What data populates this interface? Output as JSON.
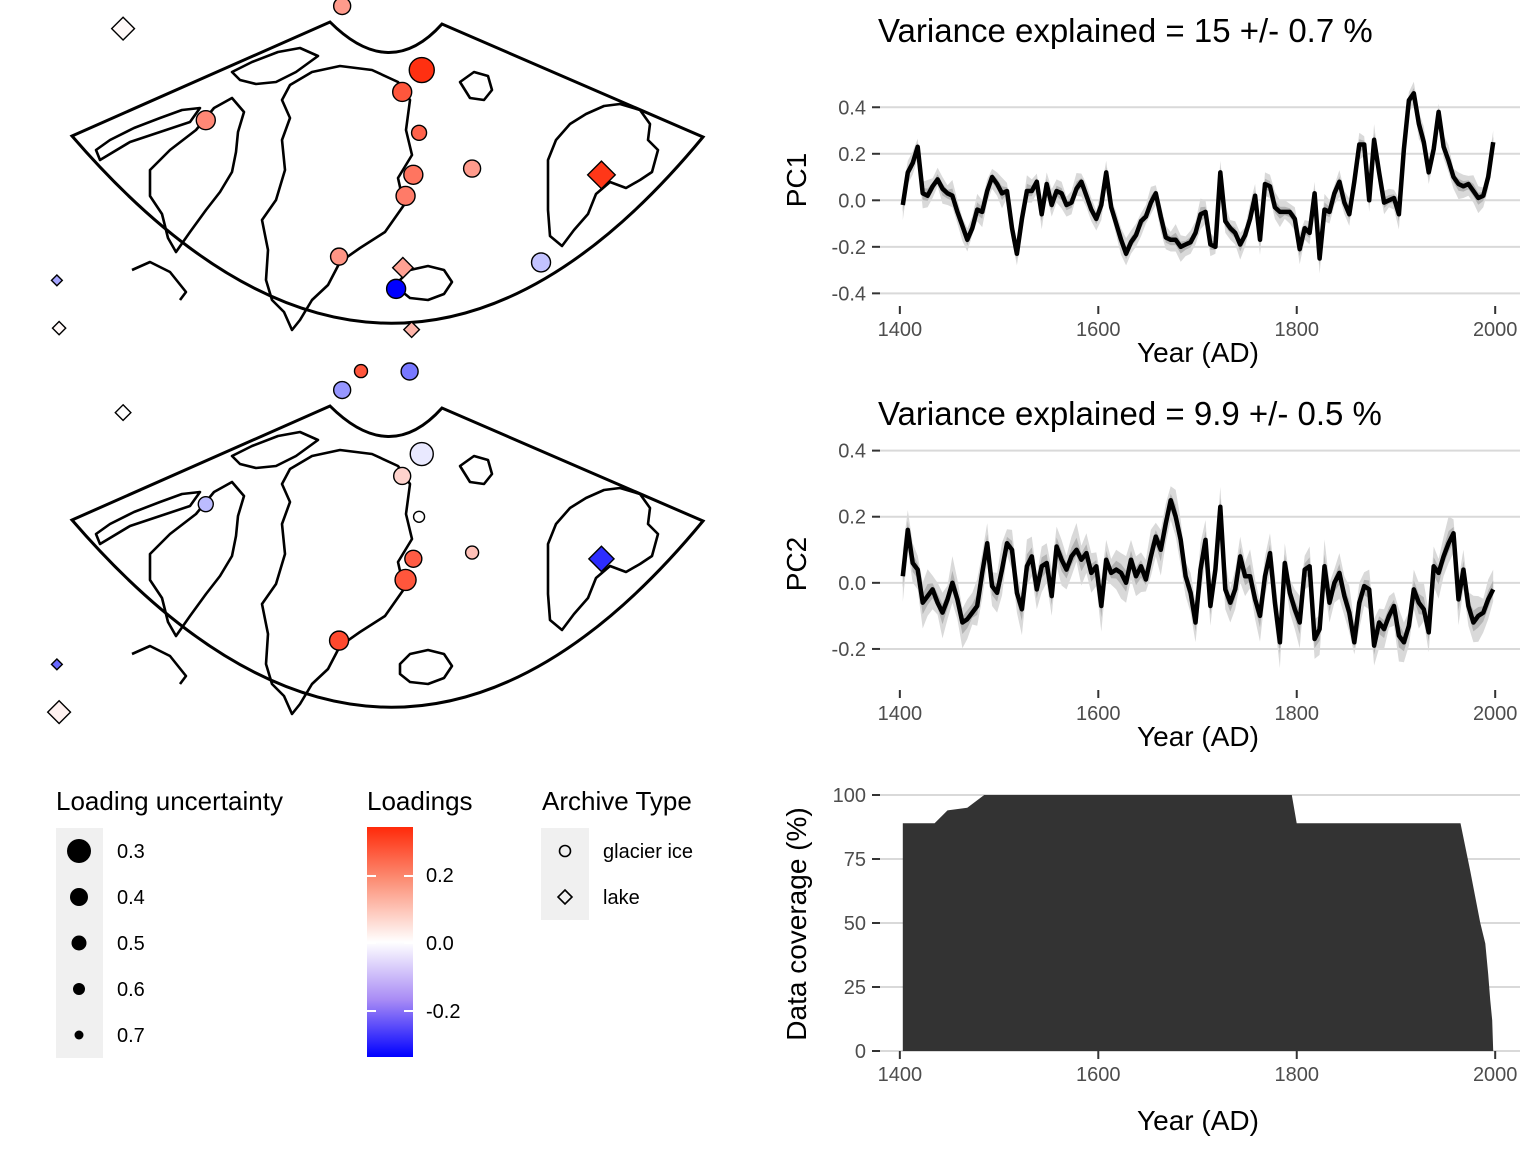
{
  "panels": {
    "pc1": {
      "title": "Variance explained = 15 +/- 0.7 %",
      "ylabel": "PC1",
      "xlabel": "Year (AD)"
    },
    "pc2": {
      "title": "Variance explained = 9.9 +/- 0.5 %",
      "ylabel": "PC2",
      "xlabel": "Year (AD)"
    },
    "coverage": {
      "ylabel": "Data coverage (%)",
      "xlabel": "Year (AD)"
    }
  },
  "legend": {
    "size": {
      "title": "Loading uncertainty",
      "labels": [
        "0.3",
        "0.4",
        "0.5",
        "0.6",
        "0.7"
      ]
    },
    "color": {
      "title": "Loadings",
      "labels": [
        "0.2",
        "0.0",
        "-0.2"
      ],
      "colors": {
        "low": "#0000ff",
        "mid": "#ffffff",
        "high": "#ff2a0a"
      }
    },
    "shape": {
      "title": "Archive Type",
      "labels": [
        "glacier ice",
        "lake"
      ]
    }
  },
  "chart_data": [
    {
      "type": "line",
      "series": [
        {
          "name": "PC1",
          "color": "#000000",
          "band_color": "#bfbfbf",
          "x": [
            1403,
            1408,
            1413,
            1418,
            1423,
            1428,
            1433,
            1438,
            1443,
            1448,
            1453,
            1458,
            1463,
            1468,
            1473,
            1478,
            1483,
            1488,
            1493,
            1498,
            1503,
            1508,
            1513,
            1518,
            1523,
            1528,
            1533,
            1538,
            1543,
            1548,
            1553,
            1558,
            1563,
            1568,
            1573,
            1578,
            1583,
            1588,
            1593,
            1598,
            1603,
            1608,
            1613,
            1618,
            1623,
            1628,
            1633,
            1638,
            1643,
            1648,
            1653,
            1658,
            1663,
            1668,
            1673,
            1678,
            1683,
            1688,
            1693,
            1698,
            1703,
            1708,
            1713,
            1718,
            1723,
            1728,
            1733,
            1738,
            1743,
            1748,
            1753,
            1758,
            1763,
            1768,
            1773,
            1778,
            1783,
            1788,
            1793,
            1798,
            1803,
            1808,
            1813,
            1818,
            1823,
            1828,
            1833,
            1838,
            1843,
            1848,
            1853,
            1858,
            1863,
            1868,
            1873,
            1878,
            1883,
            1888,
            1893,
            1898,
            1903,
            1908,
            1913,
            1918,
            1923,
            1928,
            1933,
            1938,
            1943,
            1948,
            1953,
            1958,
            1963,
            1968,
            1973,
            1978,
            1983,
            1988,
            1993,
            1998
          ],
          "y": [
            -0.02,
            0.12,
            0.16,
            0.23,
            0.03,
            0.02,
            0.06,
            0.09,
            0.05,
            0.03,
            0.02,
            -0.05,
            -0.11,
            -0.17,
            -0.12,
            -0.04,
            -0.05,
            0.04,
            0.1,
            0.07,
            0.03,
            0.04,
            -0.12,
            -0.23,
            -0.08,
            0.04,
            0.04,
            0.08,
            -0.06,
            0.07,
            -0.02,
            0.04,
            0.03,
            -0.02,
            -0.01,
            0.05,
            0.08,
            0.02,
            -0.04,
            -0.08,
            -0.02,
            0.12,
            -0.03,
            -0.1,
            -0.17,
            -0.23,
            -0.18,
            -0.15,
            -0.09,
            -0.07,
            -0.01,
            0.03,
            -0.07,
            -0.16,
            -0.17,
            -0.17,
            -0.2,
            -0.19,
            -0.18,
            -0.14,
            -0.06,
            -0.05,
            -0.19,
            -0.2,
            0.12,
            -0.09,
            -0.12,
            -0.14,
            -0.19,
            -0.15,
            -0.08,
            0.02,
            -0.17,
            0.07,
            0.06,
            -0.03,
            -0.05,
            -0.05,
            -0.05,
            -0.08,
            -0.21,
            -0.12,
            -0.14,
            0.03,
            -0.25,
            -0.04,
            -0.05,
            0.03,
            0.08,
            -0.01,
            -0.06,
            0.08,
            0.24,
            0.24,
            0.0,
            0.26,
            0.12,
            -0.01,
            0.0,
            0.01,
            -0.06,
            0.22,
            0.43,
            0.46,
            0.33,
            0.25,
            0.12,
            0.22,
            0.38,
            0.23,
            0.17,
            0.1,
            0.07,
            0.06,
            0.07,
            0.04,
            0.01,
            0.02,
            0.1,
            0.25
          ]
        }
      ],
      "band_halfwidth": 0.05,
      "xlabel": "Year (AD)",
      "ylabel": "PC1",
      "xlim": [
        1380,
        2025
      ],
      "ylim": [
        -0.42,
        0.5
      ],
      "xticks": [
        1400,
        1600,
        1800,
        2000
      ],
      "yticks": [
        -0.4,
        -0.2,
        0.0,
        0.2,
        0.4
      ],
      "ytick_labels": [
        "-0.4",
        "-0.2",
        "0.0",
        "0.2",
        "0.4"
      ],
      "title": "Variance explained = 15 +/- 0.7 %",
      "grid": true
    },
    {
      "type": "line",
      "series": [
        {
          "name": "PC2",
          "color": "#000000",
          "band_color": "#bfbfbf",
          "x": [
            1403,
            1408,
            1413,
            1418,
            1423,
            1428,
            1433,
            1438,
            1443,
            1448,
            1453,
            1458,
            1463,
            1468,
            1473,
            1478,
            1483,
            1488,
            1493,
            1498,
            1503,
            1508,
            1513,
            1518,
            1523,
            1528,
            1533,
            1538,
            1543,
            1548,
            1553,
            1558,
            1563,
            1568,
            1573,
            1578,
            1583,
            1588,
            1593,
            1598,
            1603,
            1608,
            1613,
            1618,
            1623,
            1628,
            1633,
            1638,
            1643,
            1648,
            1653,
            1658,
            1663,
            1668,
            1673,
            1678,
            1683,
            1688,
            1693,
            1698,
            1703,
            1708,
            1713,
            1718,
            1723,
            1728,
            1733,
            1738,
            1743,
            1748,
            1753,
            1758,
            1763,
            1768,
            1773,
            1778,
            1783,
            1788,
            1793,
            1798,
            1803,
            1808,
            1813,
            1818,
            1823,
            1828,
            1833,
            1838,
            1843,
            1848,
            1853,
            1858,
            1863,
            1868,
            1873,
            1878,
            1883,
            1888,
            1893,
            1898,
            1903,
            1908,
            1913,
            1918,
            1923,
            1928,
            1933,
            1938,
            1943,
            1948,
            1953,
            1958,
            1963,
            1968,
            1973,
            1978,
            1983,
            1988,
            1993,
            1998
          ],
          "y": [
            0.02,
            0.16,
            0.06,
            0.04,
            -0.06,
            -0.04,
            -0.02,
            -0.06,
            -0.09,
            -0.05,
            0.0,
            -0.05,
            -0.12,
            -0.11,
            -0.09,
            -0.07,
            0.03,
            0.12,
            -0.01,
            -0.03,
            0.04,
            0.12,
            0.1,
            -0.03,
            -0.08,
            0.05,
            0.08,
            -0.02,
            0.05,
            0.06,
            -0.04,
            0.11,
            0.07,
            0.04,
            0.08,
            0.1,
            0.07,
            0.09,
            0.03,
            0.05,
            -0.07,
            0.07,
            0.03,
            0.04,
            0.03,
            0.0,
            0.07,
            0.02,
            0.05,
            0.01,
            0.08,
            0.14,
            0.1,
            0.18,
            0.25,
            0.2,
            0.13,
            0.02,
            -0.03,
            -0.12,
            0.04,
            0.13,
            -0.07,
            0.04,
            0.23,
            -0.02,
            -0.06,
            -0.02,
            0.08,
            0.02,
            0.02,
            -0.05,
            -0.1,
            0.02,
            0.09,
            -0.06,
            -0.18,
            0.06,
            -0.03,
            -0.08,
            -0.12,
            0.04,
            0.05,
            -0.17,
            -0.14,
            0.05,
            -0.06,
            0.0,
            0.03,
            -0.04,
            -0.09,
            -0.18,
            -0.06,
            -0.01,
            -0.02,
            -0.19,
            -0.12,
            -0.14,
            -0.1,
            -0.07,
            -0.16,
            -0.18,
            -0.13,
            -0.02,
            -0.06,
            -0.08,
            -0.15,
            0.05,
            0.03,
            0.08,
            0.12,
            0.15,
            -0.05,
            0.04,
            -0.07,
            -0.12,
            -0.1,
            -0.09,
            -0.05,
            -0.02
          ]
        }
      ],
      "band_halfwidth": 0.06,
      "xlabel": "Year (AD)",
      "ylabel": "PC2",
      "xlim": [
        1380,
        2025
      ],
      "ylim": [
        -0.3,
        0.42
      ],
      "xticks": [
        1400,
        1600,
        1800,
        2000
      ],
      "yticks": [
        -0.2,
        0.0,
        0.2,
        0.4
      ],
      "ytick_labels": [
        "-0.2",
        "0.0",
        "0.2",
        "0.4"
      ],
      "title": "Variance explained = 9.9 +/- 0.5 %",
      "grid": true
    },
    {
      "type": "area",
      "series": [
        {
          "name": "Data coverage",
          "color": "#333333",
          "x": [
            1403,
            1435,
            1448,
            1468,
            1485,
            1795,
            1800,
            1965,
            1975,
            1985,
            1990,
            1993,
            1995,
            1997,
            1998
          ],
          "y": [
            89,
            89,
            94,
            95,
            100,
            100,
            89,
            89,
            70,
            50,
            42,
            30,
            20,
            12,
            0
          ]
        }
      ],
      "xlabel": "Year (AD)",
      "ylabel": "Data coverage (%)",
      "xlim": [
        1380,
        2025
      ],
      "ylim": [
        0,
        100
      ],
      "xticks": [
        1400,
        1600,
        1800,
        2000
      ],
      "yticks": [
        0,
        25,
        50,
        75,
        100
      ],
      "ytick_labels": [
        "0",
        "25",
        "50",
        "75",
        "100"
      ],
      "grid": true
    }
  ],
  "maps": [
    {
      "name": "PC1 loadings",
      "sites": [
        {
          "lon": -47,
          "lat": 76,
          "type": "glacier ice",
          "loading": 0.26,
          "uncertainty": 0.4
        },
        {
          "lon": -65,
          "lat": 68,
          "type": "glacier ice",
          "loading": 0.19,
          "uncertainty": 0.45
        },
        {
          "lon": -50,
          "lat": 75,
          "type": "glacier ice",
          "loading": 0.16,
          "uncertainty": 0.5
        },
        {
          "lon": -40,
          "lat": 80,
          "type": "glacier ice",
          "loading": 0.24,
          "uncertainty": 0.5
        },
        {
          "lon": -37,
          "lat": 78,
          "type": "lake",
          "loading": 0.12,
          "uncertainty": 0.35
        },
        {
          "lon": -38,
          "lat": 81,
          "type": "lake",
          "loading": 0.18,
          "uncertainty": 0.6
        },
        {
          "lon": -38,
          "lat": 76,
          "type": "glacier ice",
          "loading": 0.16,
          "uncertainty": 0.5
        },
        {
          "lon": -37,
          "lat": 72,
          "type": "glacier ice",
          "loading": 0.33,
          "uncertainty": 0.3
        },
        {
          "lon": -40,
          "lat": 71,
          "type": "glacier ice",
          "loading": 0.27,
          "uncertainty": 0.45
        },
        {
          "lon": -38,
          "lat": 69,
          "type": "glacier ice",
          "loading": 0.25,
          "uncertainty": 0.55
        },
        {
          "lon": -39,
          "lat": 67,
          "type": "glacier ice",
          "loading": 0.22,
          "uncertainty": 0.45
        },
        {
          "lon": -40,
          "lat": 66,
          "type": "glacier ice",
          "loading": 0.21,
          "uncertainty": 0.45
        },
        {
          "lon": -32,
          "lat": 67,
          "type": "glacier ice",
          "loading": 0.16,
          "uncertainty": 0.5
        },
        {
          "lon": -47,
          "lat": 63,
          "type": "glacier ice",
          "loading": 0.17,
          "uncertainty": 0.5
        },
        {
          "lon": -18,
          "lat": 65,
          "type": "lake",
          "loading": 0.32,
          "uncertainty": 0.35
        },
        {
          "lon": -5,
          "lat": 79,
          "type": "glacier ice",
          "loading": 0.29,
          "uncertainty": 0.5
        },
        {
          "lon": -80,
          "lat": 70,
          "type": "lake",
          "loading": 0.01,
          "uncertainty": 0.45
        },
        {
          "lon": -72,
          "lat": 58,
          "type": "lake",
          "loading": -0.12,
          "uncertainty": 0.7
        },
        {
          "lon": -70,
          "lat": 56,
          "type": "lake",
          "loading": 0.01,
          "uncertainty": 0.65
        }
      ]
    },
    {
      "name": "PC2 loadings",
      "sites": [
        {
          "lon": -47,
          "lat": 76,
          "type": "glacier ice",
          "loading": 0.27,
          "uncertainty": 0.6
        },
        {
          "lon": -65,
          "lat": 68,
          "type": "glacier ice",
          "loading": -0.09,
          "uncertainty": 0.55
        },
        {
          "lon": -50,
          "lat": 75,
          "type": "glacier ice",
          "loading": -0.14,
          "uncertainty": 0.5
        },
        {
          "lon": -40,
          "lat": 80,
          "type": "glacier ice",
          "loading": -0.34,
          "uncertainty": 0.45
        },
        {
          "lon": -37,
          "lat": 78,
          "type": "lake",
          "loading": 0.12,
          "uncertainty": 0.6
        },
        {
          "lon": -38,
          "lat": 81,
          "type": "lake",
          "loading": 0.15,
          "uncertainty": 0.5
        },
        {
          "lon": -38,
          "lat": 76,
          "type": "glacier ice",
          "loading": -0.18,
          "uncertainty": 0.5
        },
        {
          "lon": -37,
          "lat": 72,
          "type": "glacier ice",
          "loading": -0.03,
          "uncertainty": 0.35
        },
        {
          "lon": -40,
          "lat": 71,
          "type": "glacier ice",
          "loading": 0.07,
          "uncertainty": 0.5
        },
        {
          "lon": -38,
          "lat": 69,
          "type": "glacier ice",
          "loading": 0.0,
          "uncertainty": 0.65
        },
        {
          "lon": -39,
          "lat": 67,
          "type": "glacier ice",
          "loading": 0.26,
          "uncertainty": 0.5
        },
        {
          "lon": -40,
          "lat": 66,
          "type": "glacier ice",
          "loading": 0.27,
          "uncertainty": 0.4
        },
        {
          "lon": -32,
          "lat": 67,
          "type": "glacier ice",
          "loading": 0.1,
          "uncertainty": 0.6
        },
        {
          "lon": -47,
          "lat": 63,
          "type": "glacier ice",
          "loading": 0.29,
          "uncertainty": 0.45
        },
        {
          "lon": -18,
          "lat": 65,
          "type": "lake",
          "loading": -0.28,
          "uncertainty": 0.4
        },
        {
          "lon": -5,
          "lat": 79,
          "type": "glacier ice",
          "loading": -0.08,
          "uncertainty": 0.45
        },
        {
          "lon": -80,
          "lat": 70,
          "type": "lake",
          "loading": 0.0,
          "uncertainty": 0.6
        },
        {
          "lon": -72,
          "lat": 58,
          "type": "lake",
          "loading": -0.2,
          "uncertainty": 0.7
        },
        {
          "lon": -70,
          "lat": 56,
          "type": "lake",
          "loading": 0.02,
          "uncertainty": 0.45
        }
      ]
    }
  ]
}
